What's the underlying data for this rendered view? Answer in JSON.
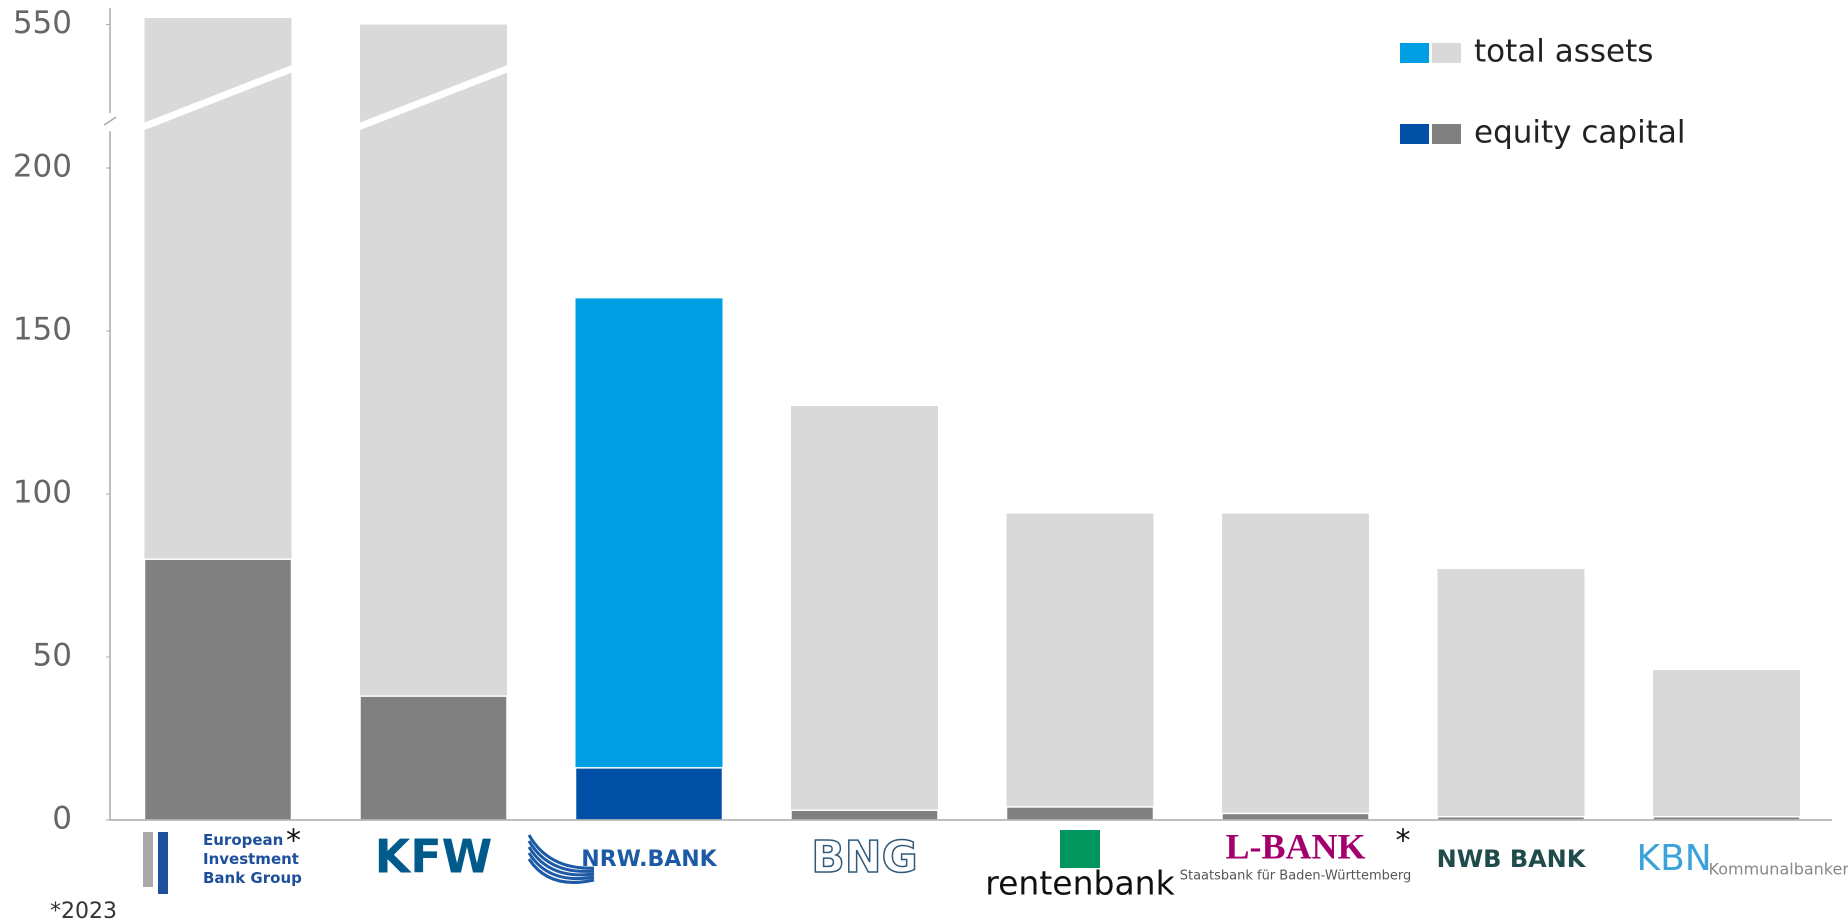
{
  "chart_data": {
    "type": "bar",
    "categories": [
      "European Investment Bank Group",
      "KFW",
      "NRW.BANK",
      "BNG",
      "rentenbank",
      "L-BANK",
      "NWB BANK",
      "KBN"
    ],
    "category_sublabels": [
      null,
      null,
      null,
      null,
      null,
      "Staatsbank für Baden-Württemberg",
      null,
      "Kommunalbanken Norge"
    ],
    "category_notes": [
      "*",
      null,
      null,
      null,
      null,
      "*",
      null,
      null
    ],
    "series": [
      {
        "name": "total assets",
        "color": "#d9d9d9",
        "highlight_color": "#009fe3",
        "values": [
          552,
          550,
          160,
          127,
          94,
          94,
          77,
          46
        ]
      },
      {
        "name": "equity capital",
        "color": "#808080",
        "highlight_color": "#0050a5",
        "values": [
          80,
          38,
          16,
          3,
          4,
          2,
          1,
          1
        ]
      }
    ],
    "highlight": 2,
    "ylim": [
      0,
      555
    ],
    "yticks": [
      0,
      50,
      100,
      150,
      200,
      550
    ],
    "axis_break": [
      215,
      521
    ],
    "footnote": "*2023"
  }
}
